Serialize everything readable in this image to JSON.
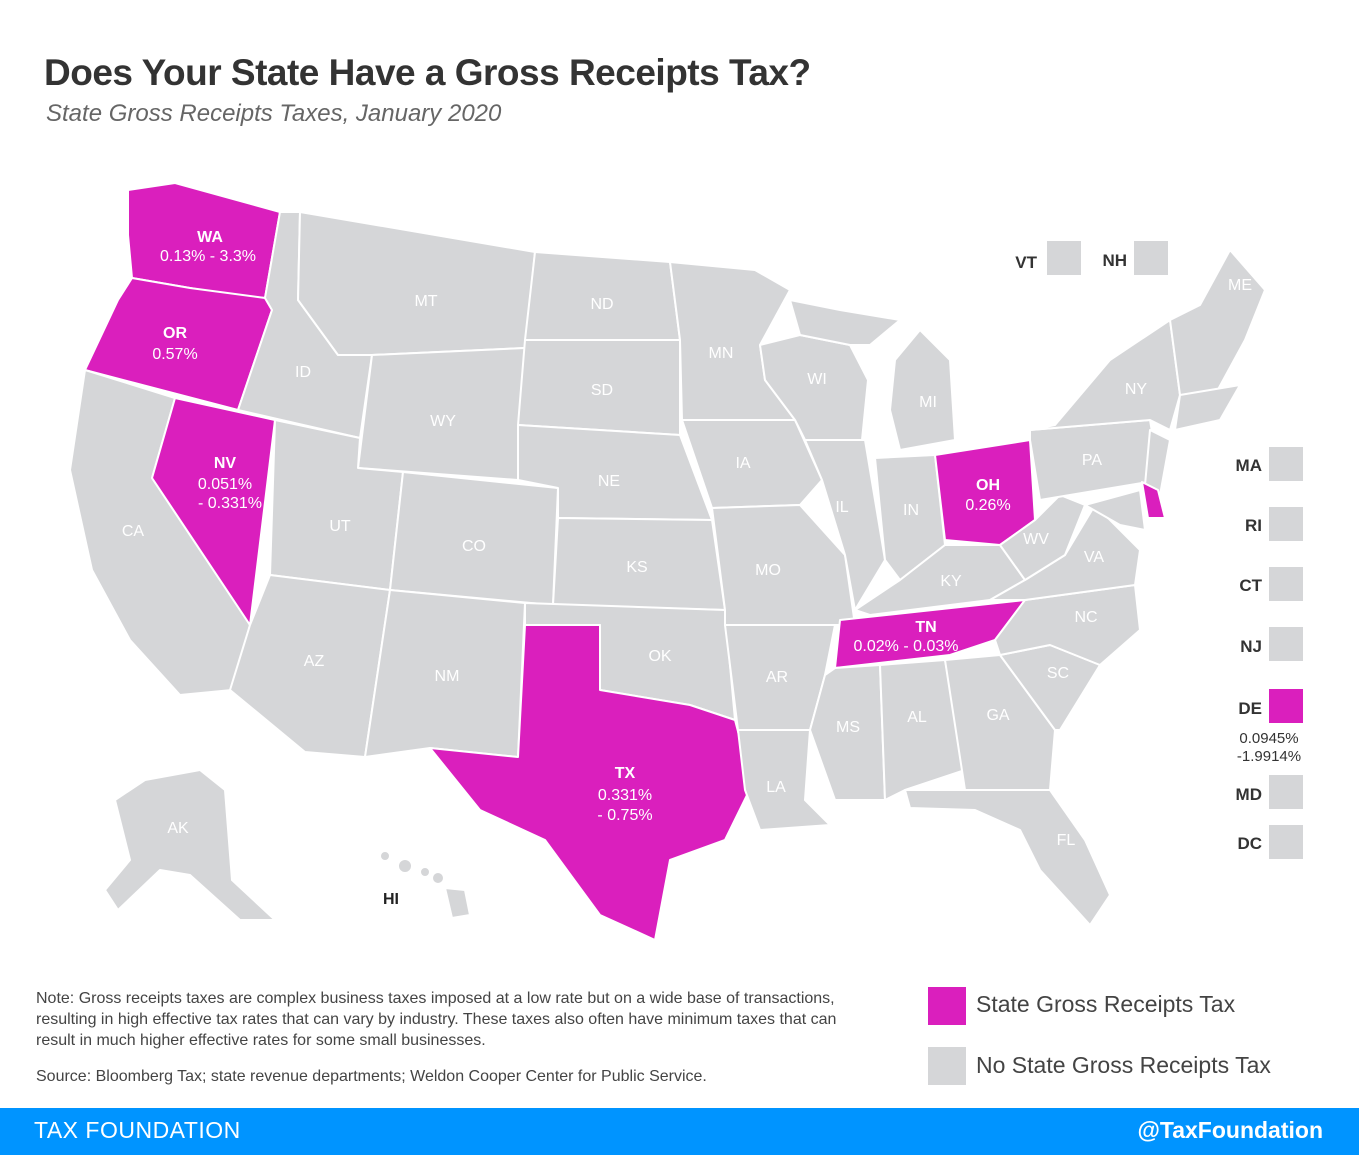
{
  "title": "Does Your State Have a Gross Receipts Tax?",
  "subtitle": "State Gross Receipts Taxes, January 2020",
  "colors": {
    "grt": "#da1fbd",
    "no_grt": "#d5d6d8",
    "footer": "#0094ff"
  },
  "states": {
    "WA": {
      "label": "WA",
      "rate": "0.13% - 3.3%",
      "grt": true
    },
    "OR": {
      "label": "OR",
      "rate": "0.57%",
      "grt": true
    },
    "NV": {
      "label": "NV",
      "rate1": "0.051%",
      "rate2": "- 0.331%",
      "grt": true
    },
    "TX": {
      "label": "TX",
      "rate1": "0.331%",
      "rate2": "- 0.75%",
      "grt": true
    },
    "OH": {
      "label": "OH",
      "rate": "0.26%",
      "grt": true
    },
    "TN": {
      "label": "TN",
      "rate": "0.02% - 0.03%",
      "grt": true
    },
    "DE": {
      "label": "DE",
      "rate1": "0.0945%",
      "rate2": "-1.9914%",
      "grt": true
    }
  },
  "other_labels": {
    "CA": "CA",
    "ID": "ID",
    "MT": "MT",
    "WY": "WY",
    "UT": "UT",
    "CO": "CO",
    "AZ": "AZ",
    "NM": "NM",
    "ND": "ND",
    "SD": "SD",
    "NE": "NE",
    "KS": "KS",
    "OK": "OK",
    "MN": "MN",
    "IA": "IA",
    "MO": "MO",
    "AR": "AR",
    "LA": "LA",
    "WI": "WI",
    "IL": "IL",
    "MI": "MI",
    "IN": "IN",
    "KY": "KY",
    "MS": "MS",
    "AL": "AL",
    "GA": "GA",
    "FL": "FL",
    "SC": "SC",
    "NC": "NC",
    "VA": "VA",
    "WV": "WV",
    "PA": "PA",
    "NY": "NY",
    "ME": "ME",
    "AK": "AK",
    "HI": "HI"
  },
  "small_states": {
    "VT": "VT",
    "NH": "NH",
    "MA": "MA",
    "RI": "RI",
    "CT": "CT",
    "NJ": "NJ",
    "DE": "DE",
    "MD": "MD",
    "DC": "DC"
  },
  "note": "Note: Gross receipts taxes are complex business taxes imposed at a low rate but on a wide base of transactions, resulting in high effective tax rates that can vary by industry. These taxes also often have minimum taxes that can result in much higher effective rates for some small businesses.",
  "source": "Source: Bloomberg Tax; state revenue departments; Weldon Cooper Center for Public Service.",
  "legend": {
    "grt": "State Gross Receipts Tax",
    "no_grt": "No State Gross Receipts Tax"
  },
  "footer": {
    "left": "TAX FOUNDATION",
    "right": "@TaxFoundation"
  }
}
